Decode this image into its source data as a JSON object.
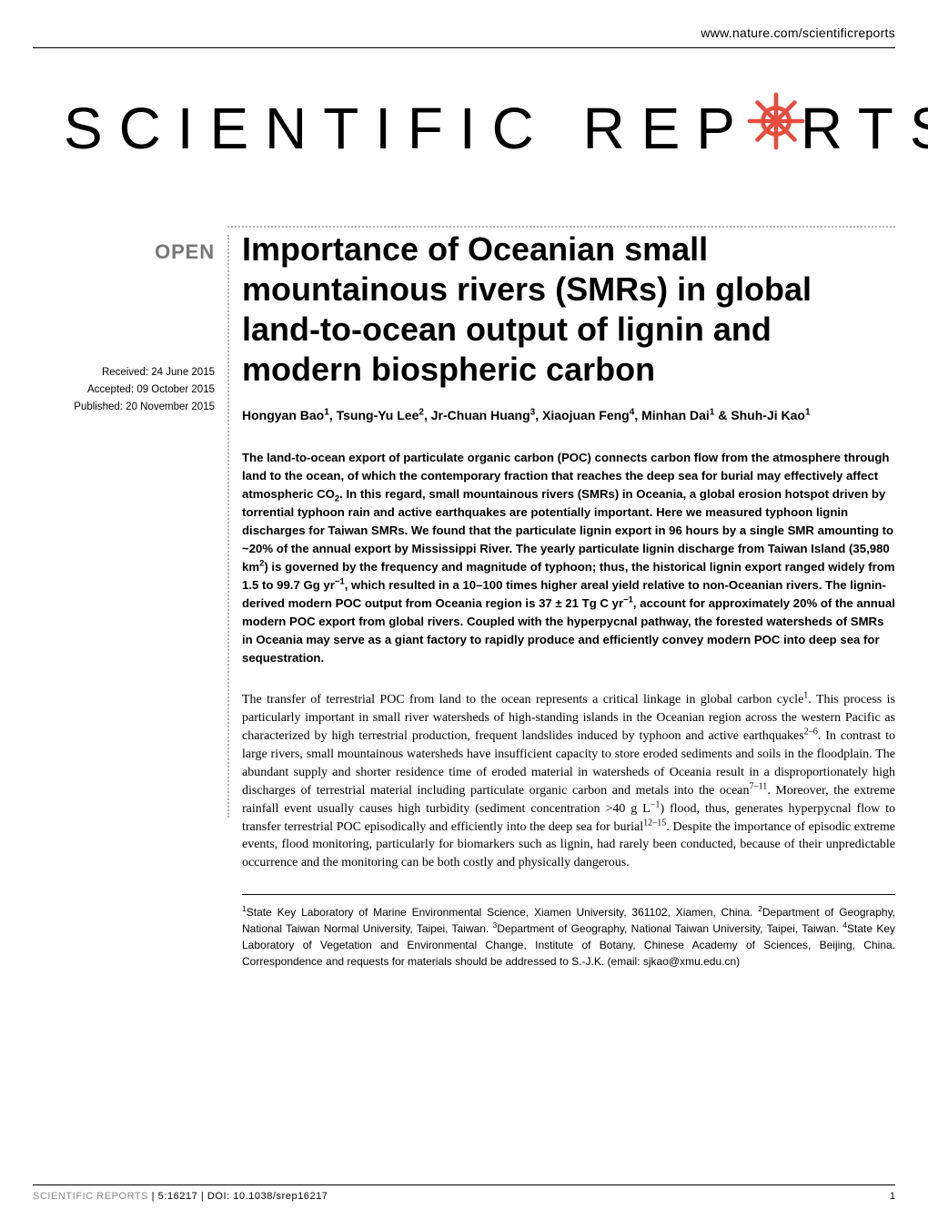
{
  "header": {
    "url": "www.nature.com/scientificreports"
  },
  "logo": {
    "part1": "SCIENTIFIC",
    "part2": "REP",
    "part3": "RTS",
    "gear_color": "#e84c3d",
    "gear_size": 66
  },
  "meta": {
    "open_label": "OPEN",
    "received": "Received: 24 June 2015",
    "accepted": "Accepted: 09 October 2015",
    "published": "Published: 20 November 2015"
  },
  "article": {
    "title": "Importance of Oceanian small mountainous rivers (SMRs) in global land-to-ocean output of lignin and modern biospheric carbon",
    "authors_html": "Hongyan Bao<sup>1</sup>, Tsung-Yu Lee<sup>2</sup>, Jr-Chuan Huang<sup>3</sup>, Xiaojuan Feng<sup>4</sup>, Minhan Dai<sup>1</sup> & Shuh-Ji Kao<sup>1</sup>",
    "abstract_html": "The land-to-ocean export of particulate organic carbon (POC) connects carbon flow from the atmosphere through land to the ocean, of which the contemporary fraction that reaches the deep sea for burial may effectively affect atmospheric CO<sub>2</sub>. In this regard, small mountainous rivers (SMRs) in Oceania, a global erosion hotspot driven by torrential typhoon rain and active earthquakes are potentially important. Here we measured typhoon lignin discharges for Taiwan SMRs. We found that the particulate lignin export in 96 hours by a single SMR amounting to ~20% of the annual export by Mississippi River. The yearly particulate lignin discharge from Taiwan Island (35,980 km<sup>2</sup>) is governed by the frequency and magnitude of typhoon; thus, the historical lignin export ranged widely from 1.5 to 99.7 Gg yr<sup>−1</sup>, which resulted in a 10–100 times higher areal yield relative to non-Oceanian rivers. The lignin-derived modern POC output from Oceania region is 37 ± 21 Tg C yr<sup>−1</sup>, account for approximately 20% of the annual modern POC export from global rivers. Coupled with the hyperpycnal pathway, the forested watersheds of SMRs in Oceania may serve as a giant factory to rapidly produce and efficiently convey modern POC into deep sea for sequestration.",
    "body_html": "The transfer of terrestrial POC from land to the ocean represents a critical linkage in global carbon cycle<sup>1</sup>. This process is particularly important in small river watersheds of high-standing islands in the Oceanian region across the western Pacific as characterized by high terrestrial production, frequent landslides induced by typhoon and active earthquakes<sup>2–6</sup>. In contrast to large rivers, small mountainous watersheds have insufficient capacity to store eroded sediments and soils in the floodplain. The abundant supply and shorter residence time of eroded material in watersheds of Oceania result in a disproportionately high discharges of terrestrial material including particulate organic carbon and metals into the ocean<sup>7–11</sup>. Moreover, the extreme rainfall event usually causes high turbidity (sediment concentration >40 g L<sup>−1</sup>) flood, thus, generates hyperpycnal flow to transfer terrestrial POC episodically and efficiently into the deep sea for burial<sup>12–15</sup>. Despite the importance of episodic extreme events, flood monitoring, particularly for biomarkers such as lignin, had rarely been conducted, because of their unpredictable occurrence and the monitoring can be both costly and physically dangerous.",
    "affiliations_html": "<sup>1</sup>State Key Laboratory of Marine Environmental Science, Xiamen University, 361102, Xiamen, China. <sup>2</sup>Department of Geography, National Taiwan Normal University, Taipei, Taiwan. <sup>3</sup>Department of Geography, National Taiwan University, Taipei, Taiwan. <sup>4</sup>State Key Laboratory of Vegetation and Environmental Change, Institute of Botany, Chinese Academy of Sciences, Beijing, China. Correspondence and requests for materials should be addressed to S.-J.K. (email: sjkao@xmu.edu.cn)"
  },
  "footer": {
    "journal": "SCIENTIFIC REPORTS",
    "citation": " | 5:16217 | DOI: 10.1038/srep16217",
    "page": "1"
  },
  "colors": {
    "text": "#000000",
    "muted": "#888888",
    "dotted": "#b0b0b0",
    "accent": "#e84c3d",
    "background": "#ffffff"
  }
}
